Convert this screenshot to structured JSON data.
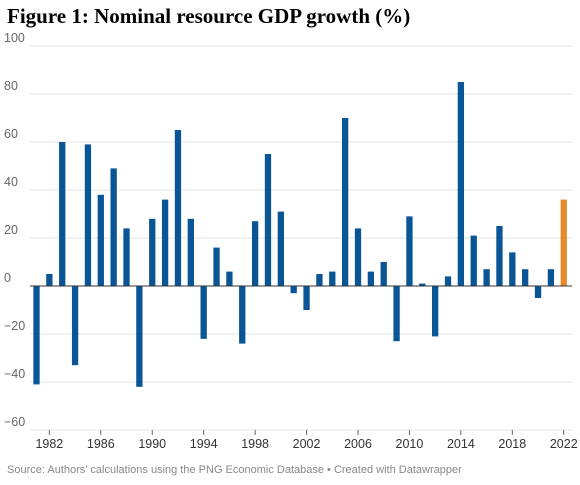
{
  "title": "Figure 1: Nominal resource GDP growth (%)",
  "source": "Source: Authors' calculations using the PNG Economic Database • Created with Datawrapper",
  "colors": {
    "default_bar": "#0a5595",
    "highlight_bar": "#e58a2b",
    "grid": "#e6e6e6",
    "zero_line": "#333333"
  },
  "chart_data": {
    "type": "bar",
    "title": "Figure 1: Nominal resource GDP growth (%)",
    "xlabel": "",
    "ylabel": "",
    "ylim": [
      -60,
      100
    ],
    "yticks": [
      100,
      80,
      60,
      40,
      20,
      0,
      -20,
      -40,
      -60
    ],
    "xticks": [
      1982,
      1986,
      1990,
      1994,
      1998,
      2002,
      2006,
      2010,
      2014,
      2018,
      2022
    ],
    "grid": true,
    "highlight_year": 2022,
    "categories": [
      1981,
      1982,
      1983,
      1984,
      1985,
      1986,
      1987,
      1988,
      1989,
      1990,
      1991,
      1992,
      1993,
      1994,
      1995,
      1996,
      1997,
      1998,
      1999,
      2000,
      2001,
      2002,
      2003,
      2004,
      2005,
      2006,
      2007,
      2008,
      2009,
      2010,
      2011,
      2012,
      2013,
      2014,
      2015,
      2016,
      2017,
      2018,
      2019,
      2020,
      2021,
      2022
    ],
    "values": [
      -41,
      5,
      60,
      -33,
      59,
      38,
      49,
      24,
      -42,
      28,
      36,
      65,
      28,
      -22,
      16,
      6,
      -24,
      27,
      55,
      31,
      -3,
      -10,
      5,
      6,
      70,
      24,
      6,
      10,
      -23,
      29,
      1,
      -21,
      4,
      85,
      21,
      7,
      25,
      14,
      7,
      -5,
      7,
      36
    ]
  }
}
